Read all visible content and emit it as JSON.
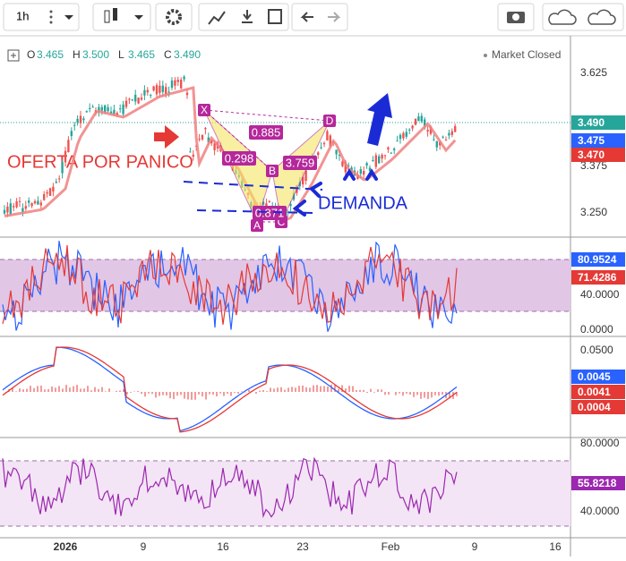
{
  "toolbar": {
    "interval": "1h"
  },
  "legend": {
    "items": [
      "O",
      "3.465",
      "H",
      "3.500",
      "L",
      "3.465",
      "C",
      "3.490"
    ],
    "status": "Market Closed"
  },
  "annotations": {
    "panic": "OFERTA POR PANICO",
    "demand": "DEMANDA"
  },
  "pattern": {
    "points": [
      "X",
      "A",
      "B",
      "C",
      "D"
    ],
    "ratios": [
      "0.885",
      "0.298",
      "3.759",
      "0.871"
    ]
  },
  "panes": [
    {
      "ticks": [
        "3.625",
        "3.375",
        "3.250"
      ],
      "badges": [
        {
          "text": "3.490",
          "color": "#26a69a"
        },
        {
          "text": "3.475",
          "color": "#2962ff"
        },
        {
          "text": "3.470",
          "color": "#e53935"
        }
      ]
    },
    {
      "ticks": [
        "40.0000",
        "0.0000"
      ],
      "badges": [
        {
          "text": "80.9524",
          "color": "#2962ff"
        },
        {
          "text": "71.4286",
          "color": "#e53935"
        }
      ]
    },
    {
      "ticks": [
        "0.0500"
      ],
      "badges": [
        {
          "text": "0.0045",
          "color": "#2962ff"
        },
        {
          "text": "0.0041",
          "color": "#e53935"
        },
        {
          "text": "0.0004",
          "color": "#e53935"
        }
      ]
    },
    {
      "ticks": [
        "80.0000",
        "40.0000"
      ],
      "badges": [
        {
          "text": "55.8218",
          "color": "#9c27b0"
        }
      ]
    }
  ],
  "x_axis": [
    "2026",
    "9",
    "16",
    "23",
    "Feb",
    "9",
    "16"
  ]
}
